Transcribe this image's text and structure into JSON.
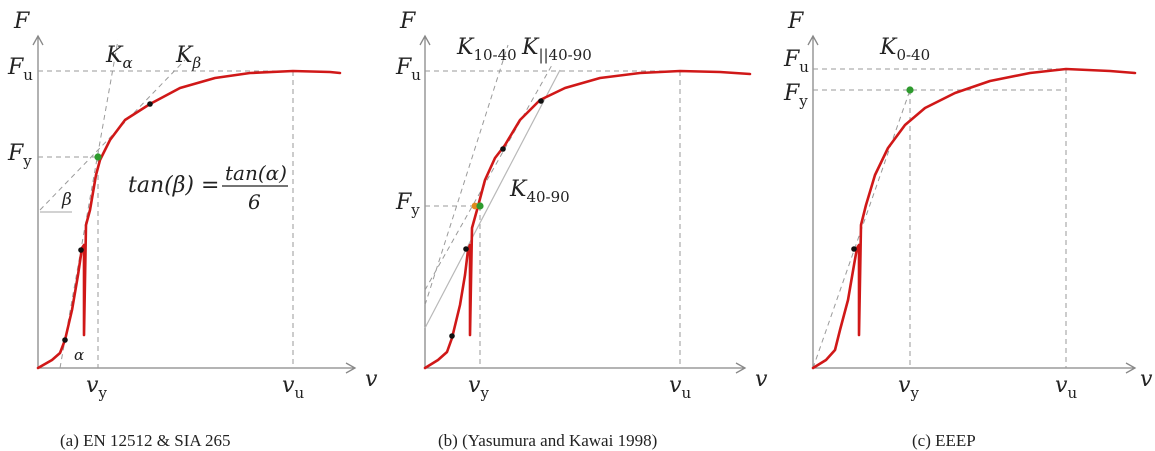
{
  "panels": [
    {
      "caption": "(a)  EN 12512 & SIA 265",
      "axis_y": "F",
      "axis_x": "v",
      "fu": {
        "main": "F",
        "sub": "u"
      },
      "fy": {
        "main": "F",
        "sub": "y"
      },
      "vy": {
        "main": "v",
        "sub": "y"
      },
      "vu": {
        "main": "v",
        "sub": "u"
      },
      "k1": {
        "main": "K",
        "sub": "α"
      },
      "k2": {
        "main": "K",
        "sub": "β"
      },
      "beta": "β",
      "alpha": "α",
      "formula": {
        "lhs": "tan(β) =",
        "num": "tan(α)",
        "den": "6"
      }
    },
    {
      "caption": "(b)  (Yasumura and Kawai 1998)",
      "axis_y": "F",
      "axis_x": "v",
      "fu": {
        "main": "F",
        "sub": "u"
      },
      "fy": {
        "main": "F",
        "sub": "y"
      },
      "vy": {
        "main": "v",
        "sub": "y"
      },
      "vu": {
        "main": "v",
        "sub": "u"
      },
      "k1": {
        "main": "K",
        "sub": "10-40"
      },
      "k2": {
        "main": "K",
        "sub": "||40-90"
      },
      "k3": {
        "main": "K",
        "sub": "40-90"
      }
    },
    {
      "caption": "(c)  EEEP",
      "axis_y": "F",
      "axis_x": "v",
      "fu": {
        "main": "F",
        "sub": "u"
      },
      "fy": {
        "main": "F",
        "sub": "y"
      },
      "vy": {
        "main": "v",
        "sub": "y"
      },
      "vu": {
        "main": "v",
        "sub": "u"
      },
      "k1": {
        "main": "K",
        "sub": "0-40"
      }
    }
  ],
  "colors": {
    "curve": "#d01818",
    "yield_point": "#2e9b2e",
    "intersection_point": "#e08a1e",
    "marker": "#111111"
  }
}
